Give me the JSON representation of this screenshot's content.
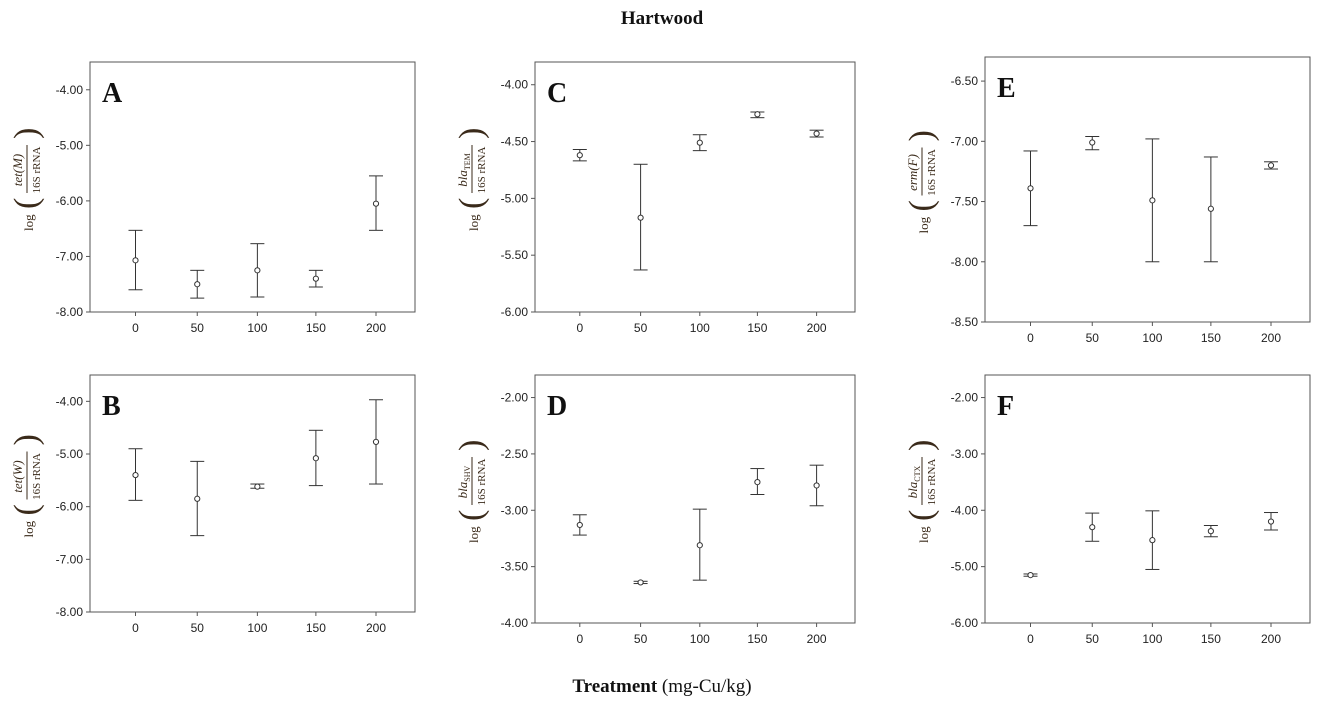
{
  "title": "Hartwood",
  "xlabel_bold": "Treatment",
  "xlabel_rest": " (mg-Cu/kg)",
  "chart_data": [
    {
      "type": "errorbar",
      "panel": "A",
      "ylabel": {
        "gene": "tet",
        "paren": "(M)",
        "sub": "",
        "denom": "16S rRNA"
      },
      "categories": [
        "0",
        "50",
        "100",
        "150",
        "200"
      ],
      "yticks": [
        "-4.00",
        "-5.00",
        "-6.00",
        "-7.00",
        "-8.00"
      ],
      "ylim": [
        -8.0,
        -3.5
      ],
      "mean": [
        -7.07,
        -7.5,
        -7.25,
        -7.4,
        -6.05
      ],
      "lower": [
        -7.6,
        -7.75,
        -7.73,
        -7.55,
        -6.53
      ],
      "upper": [
        -6.53,
        -7.25,
        -6.77,
        -7.25,
        -5.55
      ]
    },
    {
      "type": "errorbar",
      "panel": "B",
      "ylabel": {
        "gene": "tet",
        "paren": "(W)",
        "sub": "",
        "denom": "16S rRNA"
      },
      "categories": [
        "0",
        "50",
        "100",
        "150",
        "200"
      ],
      "yticks": [
        "-4.00",
        "-5.00",
        "-6.00",
        "-7.00",
        "-8.00"
      ],
      "ylim": [
        -8.0,
        -3.5
      ],
      "mean": [
        -5.4,
        -5.85,
        -5.62,
        -5.08,
        -4.77
      ],
      "lower": [
        -5.88,
        -6.55,
        -5.65,
        -5.6,
        -5.57
      ],
      "upper": [
        -4.9,
        -5.14,
        -5.57,
        -4.55,
        -3.97
      ]
    },
    {
      "type": "errorbar",
      "panel": "C",
      "ylabel": {
        "gene": "bla",
        "paren": "",
        "sub": "TEM",
        "denom": "16S rRNA"
      },
      "categories": [
        "0",
        "50",
        "100",
        "150",
        "200"
      ],
      "yticks": [
        "-4.00",
        "-4.50",
        "-5.00",
        "-5.50",
        "-6.00"
      ],
      "ylim": [
        -6.0,
        -3.8
      ],
      "mean": [
        -4.62,
        -5.17,
        -4.51,
        -4.26,
        -4.43
      ],
      "lower": [
        -4.67,
        -5.63,
        -4.58,
        -4.29,
        -4.46
      ],
      "upper": [
        -4.57,
        -4.7,
        -4.44,
        -4.24,
        -4.4
      ]
    },
    {
      "type": "errorbar",
      "panel": "D",
      "ylabel": {
        "gene": "bla",
        "paren": "",
        "sub": "SHV",
        "denom": "16S rRNA"
      },
      "categories": [
        "0",
        "50",
        "100",
        "150",
        "200"
      ],
      "yticks": [
        "-2.00",
        "-2.50",
        "-3.00",
        "-3.50",
        "-4.00"
      ],
      "ylim": [
        -4.0,
        -1.8
      ],
      "mean": [
        -3.13,
        -3.64,
        -3.31,
        -2.75,
        -2.78
      ],
      "lower": [
        -3.22,
        -3.65,
        -3.62,
        -2.86,
        -2.96
      ],
      "upper": [
        -3.04,
        -3.63,
        -2.99,
        -2.63,
        -2.6
      ]
    },
    {
      "type": "errorbar",
      "panel": "E",
      "ylabel": {
        "gene": "erm",
        "paren": "(F)",
        "sub": "",
        "denom": "16S rRNA"
      },
      "categories": [
        "0",
        "50",
        "100",
        "150",
        "200"
      ],
      "yticks": [
        "-6.50",
        "-7.00",
        "-7.50",
        "-8.00",
        "-8.50"
      ],
      "ylim": [
        -8.5,
        -6.3
      ],
      "mean": [
        -7.39,
        -7.01,
        -7.49,
        -7.56,
        -7.2
      ],
      "lower": [
        -7.7,
        -7.07,
        -8.0,
        -8.0,
        -7.23
      ],
      "upper": [
        -7.08,
        -6.96,
        -6.98,
        -7.13,
        -7.17
      ]
    },
    {
      "type": "errorbar",
      "panel": "F",
      "ylabel": {
        "gene": "bla",
        "paren": "",
        "sub": "CTX",
        "denom": "16S rRNA"
      },
      "categories": [
        "0",
        "50",
        "100",
        "150",
        "200"
      ],
      "yticks": [
        "-2.00",
        "-3.00",
        "-4.00",
        "-5.00",
        "-6.00"
      ],
      "ylim": [
        -6.0,
        -1.6
      ],
      "mean": [
        -5.15,
        -4.3,
        -4.53,
        -4.37,
        -4.2
      ],
      "lower": [
        -5.17,
        -4.55,
        -5.05,
        -4.47,
        -4.35
      ],
      "upper": [
        -5.13,
        -4.05,
        -4.01,
        -4.27,
        -4.04
      ]
    }
  ]
}
